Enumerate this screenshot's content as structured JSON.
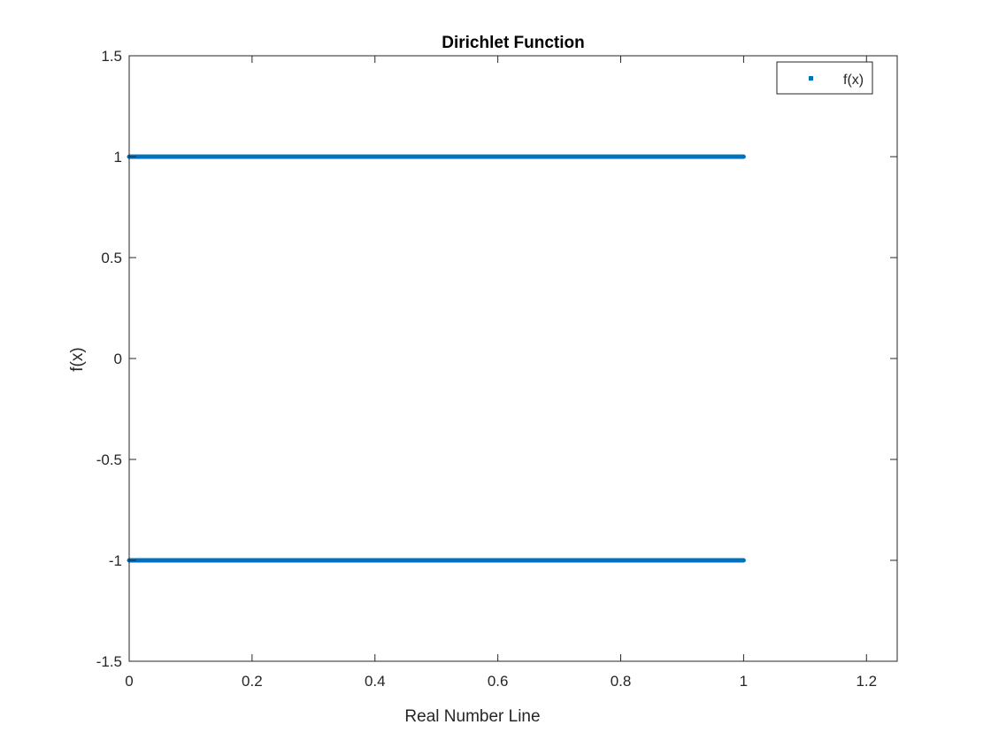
{
  "chart_data": {
    "type": "scatter",
    "title": "Dirichlet Function",
    "xlabel": "Real Number Line",
    "ylabel": "f(x)",
    "xlim": [
      0,
      1.25
    ],
    "ylim": [
      -1.5,
      1.5
    ],
    "xticks": [
      0,
      0.2,
      0.4,
      0.6,
      0.8,
      1,
      1.2
    ],
    "xtick_labels": [
      "0",
      "0.2",
      "0.4",
      "0.6",
      "0.8",
      "1",
      "1.2"
    ],
    "yticks": [
      -1.5,
      -1,
      -0.5,
      0,
      0.5,
      1,
      1.5
    ],
    "ytick_labels": [
      "-1.5",
      "-1",
      "-0.5",
      "0",
      "0.5",
      "1",
      "1.5"
    ],
    "grid": false,
    "legend_position": "top-right",
    "series": [
      {
        "name": "f(x)",
        "color": "#0072BD",
        "levels": [
          {
            "y": 1,
            "x_range": [
              0,
              1
            ]
          },
          {
            "y": -1,
            "x_range": [
              0,
              1
            ]
          }
        ]
      }
    ]
  }
}
